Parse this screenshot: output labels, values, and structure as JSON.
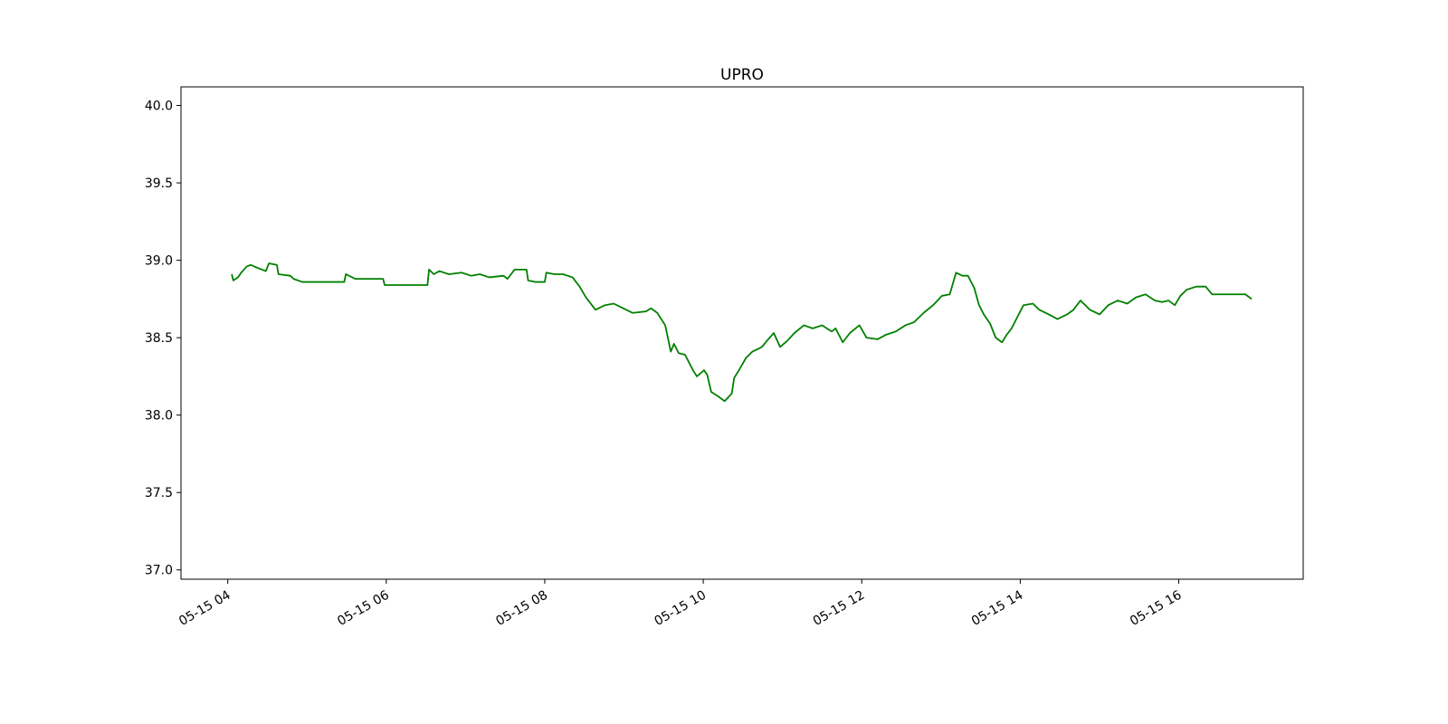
{
  "chart_data": {
    "type": "line",
    "title": "UPRO",
    "series": [
      {
        "color": "#008000",
        "x": [
          4.05,
          4.07,
          4.13,
          4.17,
          4.24,
          4.29,
          4.38,
          4.48,
          4.52,
          4.62,
          4.64,
          4.79,
          4.83,
          4.94,
          5.28,
          5.47,
          5.49,
          5.61,
          5.96,
          5.98,
          6.25,
          6.52,
          6.54,
          6.6,
          6.67,
          6.79,
          6.95,
          7.07,
          7.18,
          7.3,
          7.48,
          7.53,
          7.62,
          7.77,
          7.79,
          7.88,
          8.0,
          8.02,
          8.12,
          8.23,
          8.35,
          8.44,
          8.52,
          8.64,
          8.76,
          8.87,
          8.99,
          9.11,
          9.28,
          9.34,
          9.42,
          9.52,
          9.59,
          9.63,
          9.69,
          9.77,
          9.87,
          9.92,
          10.01,
          10.05,
          10.1,
          10.19,
          10.27,
          10.36,
          10.39,
          10.45,
          10.54,
          10.62,
          10.74,
          10.82,
          10.89,
          10.97,
          11.06,
          11.15,
          11.27,
          11.38,
          11.5,
          11.62,
          11.67,
          11.76,
          11.85,
          11.97,
          12.06,
          12.2,
          12.31,
          12.43,
          12.55,
          12.66,
          12.78,
          12.9,
          13.01,
          13.11,
          13.19,
          13.27,
          13.34,
          13.42,
          13.48,
          13.54,
          13.62,
          13.69,
          13.77,
          13.83,
          13.89,
          13.95,
          14.04,
          14.16,
          14.24,
          14.36,
          14.47,
          14.59,
          14.67,
          14.76,
          14.88,
          15.0,
          15.11,
          15.23,
          15.35,
          15.46,
          15.58,
          15.7,
          15.79,
          15.87,
          15.95,
          16.02,
          16.1,
          16.22,
          16.34,
          16.42,
          16.63,
          16.84,
          16.92
        ],
        "values": [
          38.91,
          38.87,
          38.89,
          38.92,
          38.96,
          38.97,
          38.95,
          38.93,
          38.98,
          38.97,
          38.91,
          38.9,
          38.88,
          38.86,
          38.86,
          38.86,
          38.91,
          38.88,
          38.88,
          38.84,
          38.84,
          38.84,
          38.94,
          38.91,
          38.93,
          38.91,
          38.92,
          38.9,
          38.91,
          38.89,
          38.9,
          38.88,
          38.94,
          38.94,
          38.87,
          38.86,
          38.86,
          38.92,
          38.91,
          38.91,
          38.89,
          38.83,
          38.76,
          38.68,
          38.71,
          38.72,
          38.69,
          38.66,
          38.67,
          38.69,
          38.66,
          38.58,
          38.41,
          38.46,
          38.4,
          38.39,
          38.29,
          38.25,
          38.29,
          38.26,
          38.15,
          38.12,
          38.09,
          38.14,
          38.24,
          38.29,
          38.37,
          38.41,
          38.44,
          38.49,
          38.53,
          38.44,
          38.48,
          38.53,
          38.58,
          38.56,
          38.58,
          38.54,
          38.56,
          38.47,
          38.53,
          38.58,
          38.5,
          38.49,
          38.52,
          38.54,
          38.58,
          38.6,
          38.66,
          38.71,
          38.77,
          38.78,
          38.92,
          38.9,
          38.9,
          38.82,
          38.71,
          38.65,
          38.59,
          38.5,
          38.47,
          38.52,
          38.56,
          38.62,
          38.71,
          38.72,
          38.68,
          38.65,
          38.62,
          38.65,
          38.68,
          38.74,
          38.68,
          38.65,
          38.71,
          38.74,
          38.72,
          38.76,
          38.78,
          38.74,
          38.73,
          38.74,
          38.71,
          38.77,
          38.81,
          38.83,
          38.83,
          38.78,
          38.78,
          38.78,
          38.75
        ]
      }
    ],
    "xlim": [
      3.41,
      17.57
    ],
    "xticks": [
      {
        "value": 4,
        "label": "05-15 04"
      },
      {
        "value": 6,
        "label": "05-15 06"
      },
      {
        "value": 8,
        "label": "05-15 08"
      },
      {
        "value": 10,
        "label": "05-15 10"
      },
      {
        "value": 12,
        "label": "05-15 12"
      },
      {
        "value": 14,
        "label": "05-15 14"
      },
      {
        "value": 16,
        "label": "05-15 16"
      }
    ],
    "ylim": [
      36.94,
      40.12
    ],
    "yticks": [
      {
        "value": 37,
        "label": "37.0"
      },
      37.5,
      {
        "value": 38,
        "label": "38.0"
      },
      38.5,
      {
        "value": 39,
        "label": "39.0"
      },
      39.5,
      {
        "value": 40,
        "label": "40.0"
      }
    ],
    "grid": false
  }
}
